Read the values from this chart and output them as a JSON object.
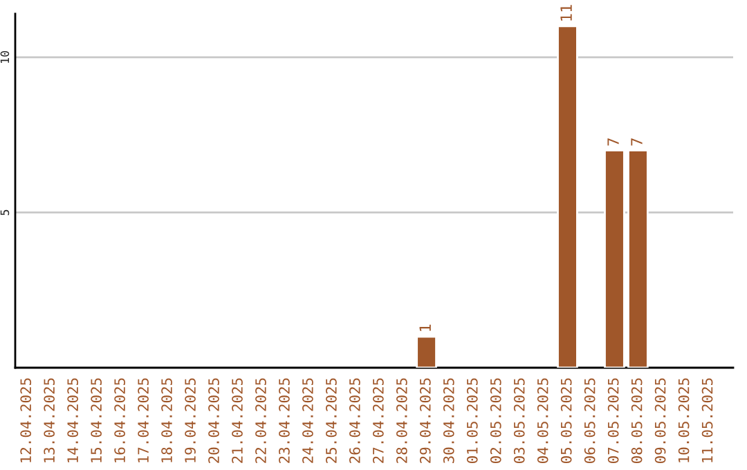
{
  "chart_data": {
    "type": "bar",
    "categories": [
      "12.04.2025",
      "13.04.2025",
      "14.04.2025",
      "15.04.2025",
      "16.04.2025",
      "17.04.2025",
      "18.04.2025",
      "19.04.2025",
      "20.04.2025",
      "21.04.2025",
      "22.04.2025",
      "23.04.2025",
      "24.04.2025",
      "25.04.2025",
      "26.04.2025",
      "27.04.2025",
      "28.04.2025",
      "29.04.2025",
      "30.04.2025",
      "01.05.2025",
      "02.05.2025",
      "03.05.2025",
      "04.05.2025",
      "05.05.2025",
      "06.05.2025",
      "07.05.2025",
      "08.05.2025",
      "09.05.2025",
      "10.05.2025",
      "11.05.2025"
    ],
    "values": [
      null,
      null,
      null,
      null,
      null,
      null,
      null,
      null,
      null,
      null,
      null,
      null,
      null,
      null,
      null,
      null,
      null,
      1,
      null,
      null,
      null,
      null,
      null,
      11,
      null,
      7,
      7,
      null,
      null,
      null
    ],
    "value_labels": [
      null,
      null,
      null,
      null,
      null,
      null,
      null,
      null,
      null,
      null,
      null,
      null,
      null,
      null,
      null,
      null,
      null,
      "1",
      null,
      null,
      null,
      null,
      null,
      "11",
      null,
      "7",
      "7",
      null,
      null,
      null
    ],
    "color": "#a0572a",
    "ylim": [
      0,
      11.4
    ],
    "yticks": [
      5,
      10
    ],
    "grid": "y",
    "legend": false
  }
}
